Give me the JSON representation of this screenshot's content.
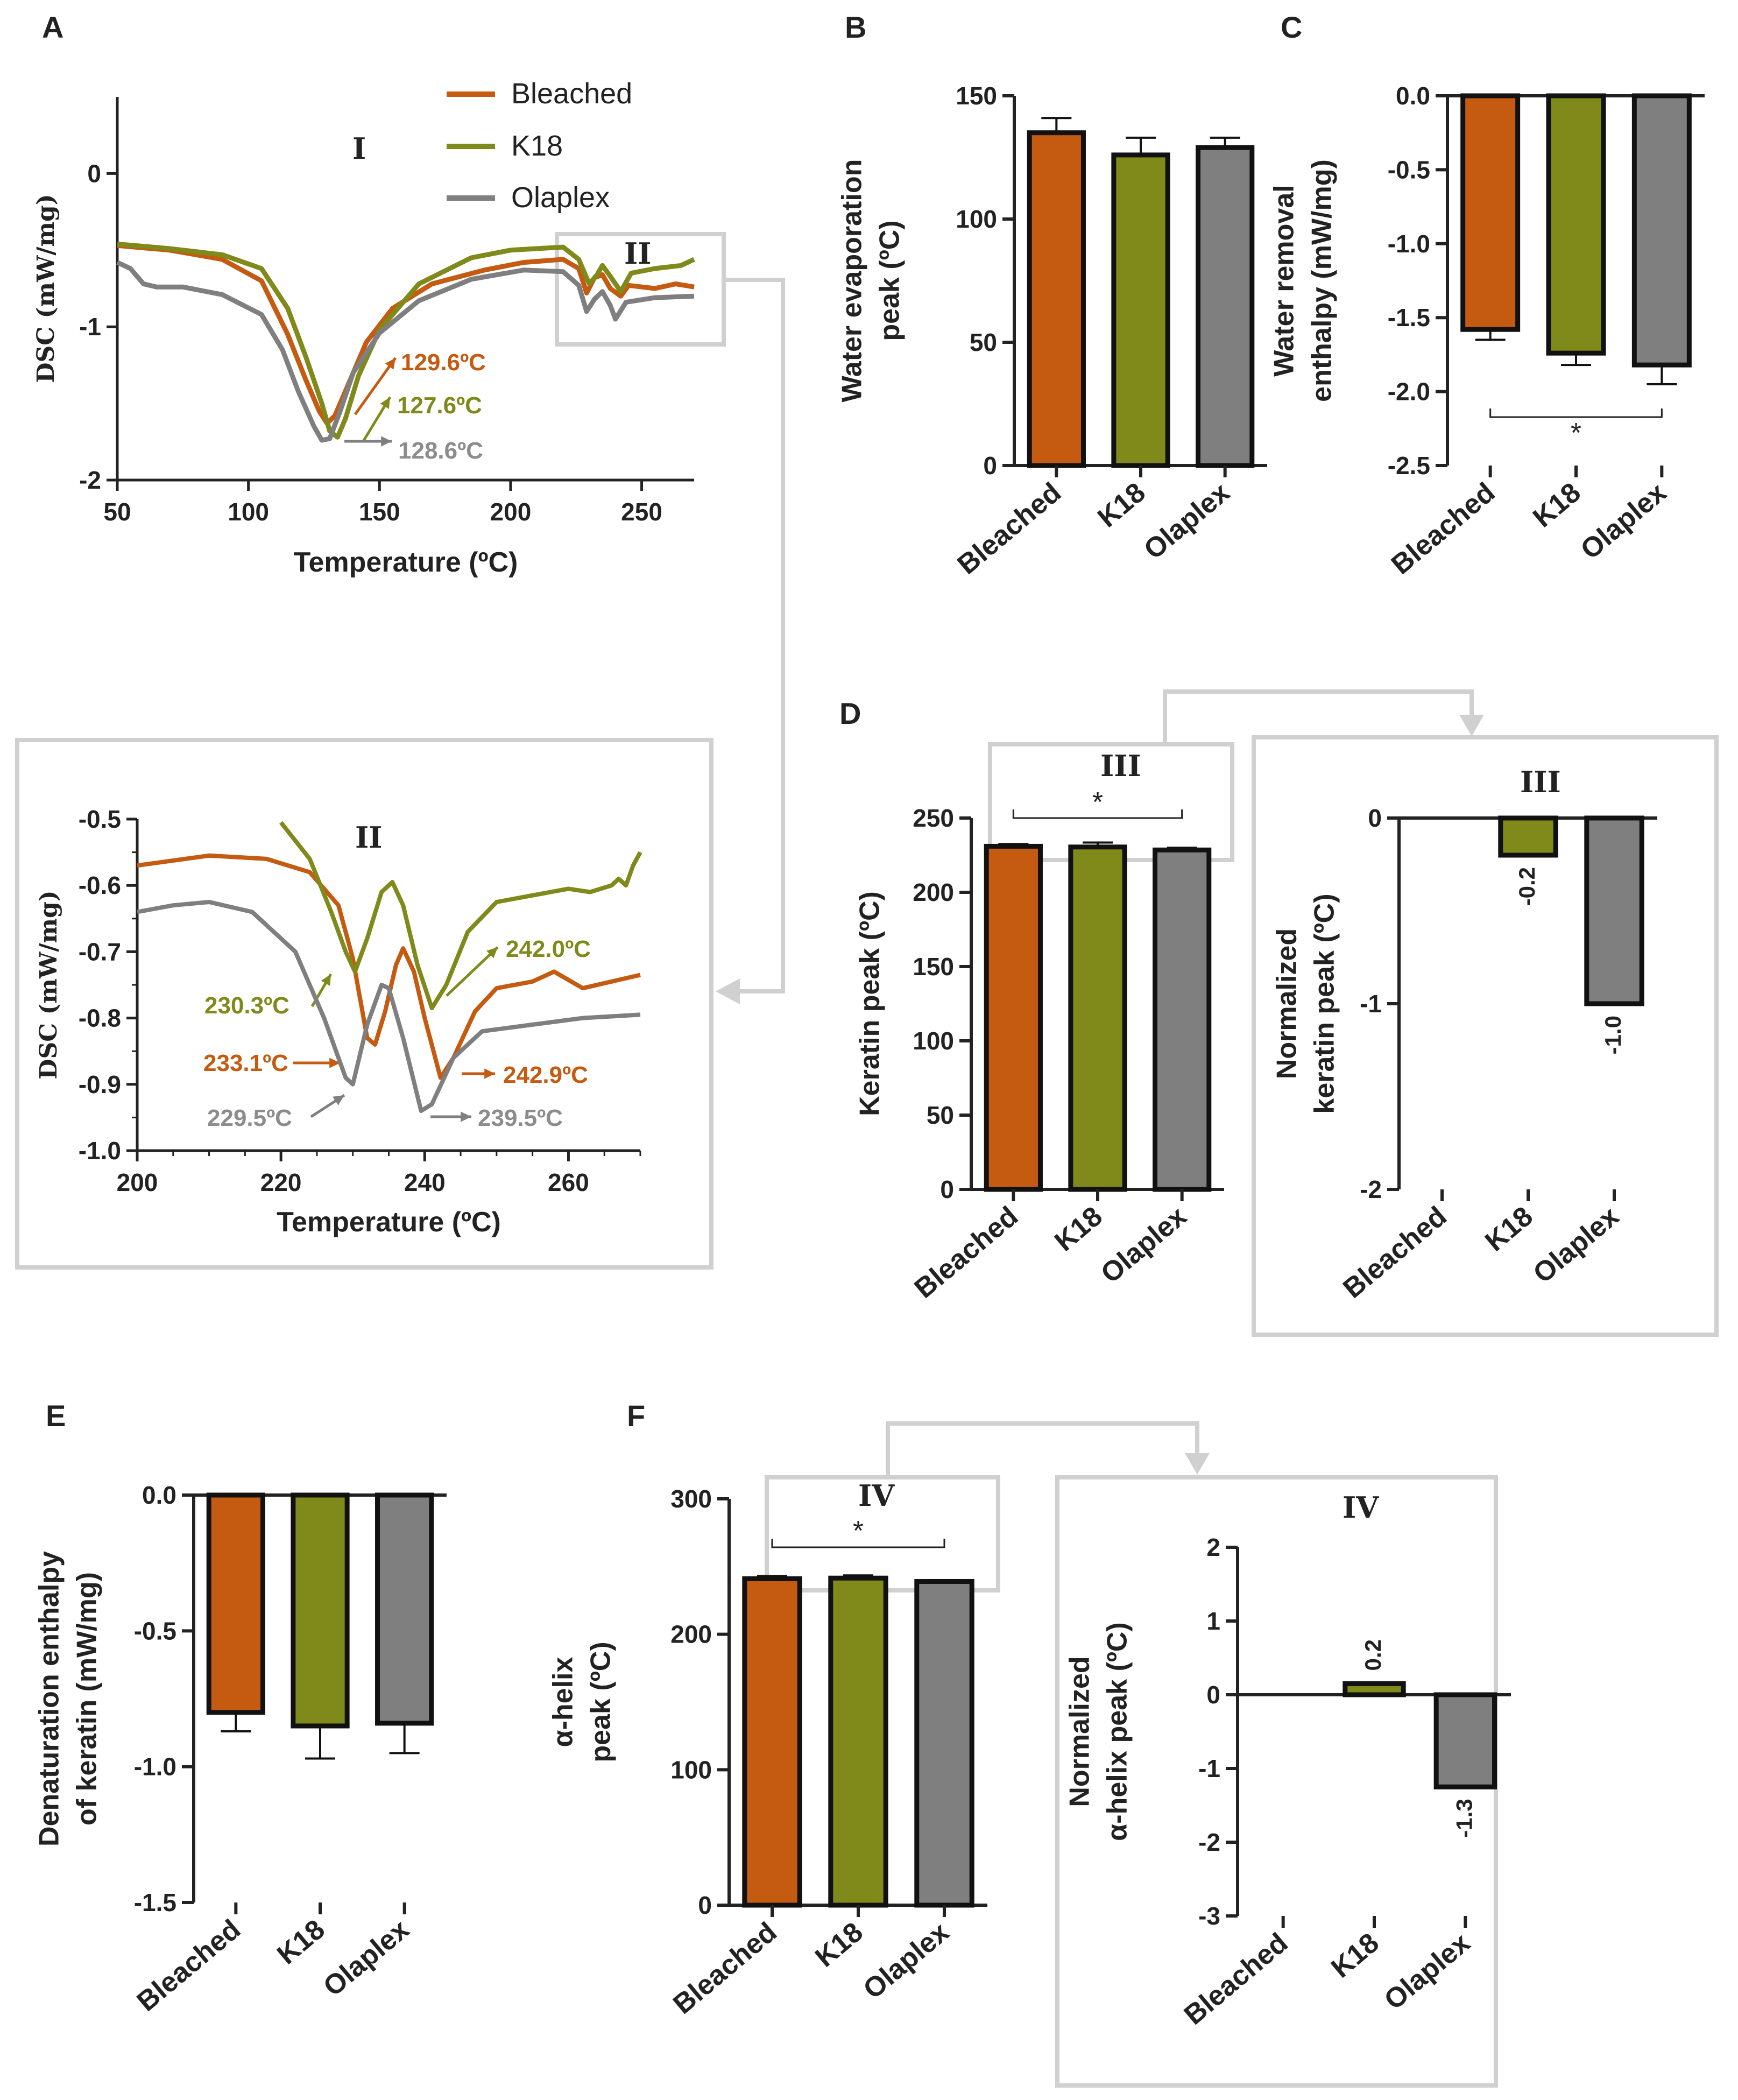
{
  "panels": {
    "A": "A",
    "B": "B",
    "C": "C",
    "D": "D",
    "E": "E",
    "F": "F"
  },
  "legend": [
    "Bleached",
    "K18",
    "Olaplex"
  ],
  "regions": {
    "I": "I",
    "II": "II",
    "III": "III",
    "IV": "IV"
  },
  "colors": {
    "bleached": "#c55a11",
    "k18": "#7f8a1b",
    "olaplex": "#7f7f7f",
    "frame": "#d0d0d0",
    "text": "#222222"
  },
  "annotations": {
    "main": [
      "129.6ºC",
      "127.6ºC",
      "128.6ºC"
    ],
    "zoom": [
      "230.3ºC",
      "242.0ºC",
      "233.1ºC",
      "242.9ºC",
      "229.5ºC",
      "239.5ºC"
    ]
  },
  "chart_data": [
    {
      "id": "dsc-main",
      "type": "line",
      "title": "",
      "xlabel": "Temperature (ºC)",
      "ylabel": "DSC (mW/mg)",
      "xlim": [
        50,
        270
      ],
      "ylim": [
        -2,
        0.5
      ],
      "xticks": [
        "50",
        "100",
        "150",
        "200",
        "250"
      ],
      "yticks": [
        "0",
        "-1",
        "-2"
      ],
      "series": [
        {
          "name": "Bleached",
          "points": [
            [
              50,
              -0.47
            ],
            [
              70,
              -0.5
            ],
            [
              90,
              -0.56
            ],
            [
              105,
              -0.7
            ],
            [
              115,
              -1.05
            ],
            [
              122,
              -1.35
            ],
            [
              127,
              -1.55
            ],
            [
              130,
              -1.63
            ],
            [
              133,
              -1.58
            ],
            [
              138,
              -1.38
            ],
            [
              145,
              -1.1
            ],
            [
              155,
              -0.88
            ],
            [
              170,
              -0.72
            ],
            [
              190,
              -0.63
            ],
            [
              205,
              -0.58
            ],
            [
              220,
              -0.56
            ],
            [
              226,
              -0.62
            ],
            [
              229,
              -0.78
            ],
            [
              232,
              -0.68
            ],
            [
              235,
              -0.66
            ],
            [
              238,
              -0.75
            ],
            [
              242,
              -0.8
            ],
            [
              245,
              -0.73
            ],
            [
              255,
              -0.75
            ],
            [
              263,
              -0.72
            ],
            [
              270,
              -0.74
            ]
          ]
        },
        {
          "name": "K18",
          "points": [
            [
              50,
              -0.46
            ],
            [
              70,
              -0.49
            ],
            [
              90,
              -0.53
            ],
            [
              105,
              -0.62
            ],
            [
              115,
              -0.88
            ],
            [
              122,
              -1.2
            ],
            [
              128,
              -1.5
            ],
            [
              131,
              -1.68
            ],
            [
              134,
              -1.72
            ],
            [
              137,
              -1.6
            ],
            [
              142,
              -1.32
            ],
            [
              150,
              -1.02
            ],
            [
              165,
              -0.72
            ],
            [
              185,
              -0.55
            ],
            [
              200,
              -0.5
            ],
            [
              220,
              -0.48
            ],
            [
              226,
              -0.56
            ],
            [
              230,
              -0.72
            ],
            [
              233,
              -0.66
            ],
            [
              235,
              -0.6
            ],
            [
              238,
              -0.67
            ],
            [
              242,
              -0.77
            ],
            [
              246,
              -0.65
            ],
            [
              255,
              -0.62
            ],
            [
              265,
              -0.6
            ],
            [
              270,
              -0.56
            ]
          ]
        },
        {
          "name": "Olaplex",
          "points": [
            [
              50,
              -0.58
            ],
            [
              55,
              -0.62
            ],
            [
              60,
              -0.72
            ],
            [
              65,
              -0.74
            ],
            [
              75,
              -0.74
            ],
            [
              90,
              -0.79
            ],
            [
              105,
              -0.92
            ],
            [
              113,
              -1.15
            ],
            [
              119,
              -1.42
            ],
            [
              125,
              -1.65
            ],
            [
              128,
              -1.74
            ],
            [
              131,
              -1.73
            ],
            [
              135,
              -1.55
            ],
            [
              140,
              -1.3
            ],
            [
              150,
              -1.04
            ],
            [
              165,
              -0.83
            ],
            [
              185,
              -0.69
            ],
            [
              205,
              -0.63
            ],
            [
              220,
              -0.64
            ],
            [
              226,
              -0.73
            ],
            [
              229,
              -0.9
            ],
            [
              232,
              -0.82
            ],
            [
              235,
              -0.77
            ],
            [
              238,
              -0.86
            ],
            [
              240,
              -0.95
            ],
            [
              244,
              -0.84
            ],
            [
              255,
              -0.81
            ],
            [
              270,
              -0.8
            ]
          ]
        }
      ]
    },
    {
      "id": "dsc-zoom",
      "type": "line",
      "title": "",
      "xlabel": "Temperature (ºC)",
      "ylabel": "DSC (mW/mg)",
      "xlim": [
        200,
        270
      ],
      "ylim": [
        -1.0,
        -0.5
      ],
      "xticks": [
        "200",
        "220",
        "240",
        "260"
      ],
      "yticks": [
        "-0.5",
        "-0.6",
        "-0.7",
        "-0.8",
        "-0.9",
        "-1.0"
      ],
      "series": [
        {
          "name": "Bleached",
          "points": [
            [
              200,
              -0.57
            ],
            [
              210,
              -0.555
            ],
            [
              218,
              -0.56
            ],
            [
              224,
              -0.58
            ],
            [
              228,
              -0.63
            ],
            [
              230,
              -0.71
            ],
            [
              232,
              -0.83
            ],
            [
              233.1,
              -0.84
            ],
            [
              234.5,
              -0.79
            ],
            [
              236,
              -0.72
            ],
            [
              237,
              -0.695
            ],
            [
              238.5,
              -0.73
            ],
            [
              240,
              -0.8
            ],
            [
              242.2,
              -0.89
            ],
            [
              244,
              -0.86
            ],
            [
              247,
              -0.79
            ],
            [
              250,
              -0.755
            ],
            [
              255,
              -0.745
            ],
            [
              258,
              -0.73
            ],
            [
              262,
              -0.755
            ],
            [
              266,
              -0.745
            ],
            [
              270,
              -0.735
            ]
          ]
        },
        {
          "name": "K18",
          "points": [
            [
              220,
              -0.505
            ],
            [
              224,
              -0.56
            ],
            [
              227,
              -0.64
            ],
            [
              229,
              -0.7
            ],
            [
              230.3,
              -0.73
            ],
            [
              232,
              -0.68
            ],
            [
              234,
              -0.61
            ],
            [
              235.5,
              -0.595
            ],
            [
              237,
              -0.63
            ],
            [
              239,
              -0.72
            ],
            [
              241,
              -0.785
            ],
            [
              243,
              -0.75
            ],
            [
              246,
              -0.67
            ],
            [
              250,
              -0.625
            ],
            [
              255,
              -0.615
            ],
            [
              260,
              -0.605
            ],
            [
              263,
              -0.61
            ],
            [
              266,
              -0.6
            ],
            [
              267,
              -0.59
            ],
            [
              268,
              -0.6
            ],
            [
              269,
              -0.57
            ],
            [
              270,
              -0.55
            ]
          ]
        },
        {
          "name": "Olaplex",
          "points": [
            [
              200,
              -0.64
            ],
            [
              205,
              -0.63
            ],
            [
              210,
              -0.625
            ],
            [
              216,
              -0.64
            ],
            [
              222,
              -0.7
            ],
            [
              226,
              -0.8
            ],
            [
              229,
              -0.89
            ],
            [
              230,
              -0.9
            ],
            [
              232,
              -0.81
            ],
            [
              234,
              -0.75
            ],
            [
              235,
              -0.755
            ],
            [
              237,
              -0.83
            ],
            [
              239.5,
              -0.94
            ],
            [
              241,
              -0.93
            ],
            [
              244,
              -0.86
            ],
            [
              248,
              -0.82
            ],
            [
              255,
              -0.81
            ],
            [
              262,
              -0.8
            ],
            [
              270,
              -0.795
            ]
          ]
        }
      ]
    },
    {
      "id": "B",
      "type": "bar",
      "title": "",
      "categories": [
        "Bleached",
        "K18",
        "Olaplex"
      ],
      "values": [
        135,
        126,
        129
      ],
      "errors": [
        6,
        7,
        4
      ],
      "ylabel": "Water evaporation peak (ºC)",
      "ylabel_lines": [
        "Water evaporation",
        "peak (ºC)"
      ],
      "ylim": [
        0,
        150
      ],
      "yticks": [
        "0",
        "50",
        "100",
        "150"
      ]
    },
    {
      "id": "C",
      "type": "bar",
      "title": "",
      "categories": [
        "Bleached",
        "K18",
        "Olaplex"
      ],
      "values": [
        -1.58,
        -1.74,
        -1.82
      ],
      "errors": [
        0.07,
        0.08,
        0.13
      ],
      "ylabel": "Water removal enthalpy (mW/mg)",
      "ylabel_lines": [
        "Water removal",
        "enthalpy (mW/mg)"
      ],
      "ylim": [
        -2.5,
        0
      ],
      "yticks": [
        "0.0",
        "-0.5",
        "-1.0",
        "-1.5",
        "-2.0",
        "-2.5"
      ],
      "significance": {
        "from": "Bleached",
        "to": "Olaplex",
        "label": "*"
      }
    },
    {
      "id": "D",
      "type": "bar",
      "title": "",
      "categories": [
        "Bleached",
        "K18",
        "Olaplex"
      ],
      "values": [
        231,
        230.5,
        228.5
      ],
      "errors": [
        1.5,
        3,
        1.5
      ],
      "ylabel": "Keratin peak (ºC)",
      "ylabel_lines": [
        "Keratin peak (ºC)"
      ],
      "ylim": [
        0,
        250
      ],
      "yticks": [
        "0",
        "50",
        "100",
        "150",
        "200",
        "250"
      ],
      "significance": {
        "from": "Bleached",
        "to": "Olaplex",
        "label": "*"
      }
    },
    {
      "id": "D-normalized",
      "type": "bar",
      "title": "III",
      "categories": [
        "Bleached",
        "K18",
        "Olaplex"
      ],
      "values": [
        0,
        -0.2,
        -1.0
      ],
      "value_labels": [
        "",
        "-0.2",
        "-1.0"
      ],
      "ylabel": "Normalized keratin peak (ºC)",
      "ylabel_lines": [
        "Normalized",
        "keratin peak (ºC)"
      ],
      "ylim": [
        -2,
        0
      ],
      "yticks": [
        "0",
        "-1",
        "-2"
      ]
    },
    {
      "id": "E",
      "type": "bar",
      "title": "",
      "categories": [
        "Bleached",
        "K18",
        "Olaplex"
      ],
      "values": [
        -0.8,
        -0.85,
        -0.84
      ],
      "errors": [
        0.07,
        0.12,
        0.11
      ],
      "ylabel": "Denaturation enthalpy of keratin (mW/mg)",
      "ylabel_lines": [
        "Denaturation enthalpy",
        "of keratin (mW/mg)"
      ],
      "ylim": [
        -1.5,
        0
      ],
      "yticks": [
        "0.0",
        "-0.5",
        "-1.0",
        "-1.5"
      ]
    },
    {
      "id": "F",
      "type": "bar",
      "title": "",
      "categories": [
        "Bleached",
        "K18",
        "Olaplex"
      ],
      "values": [
        241,
        241.5,
        239
      ],
      "errors": [
        2,
        2,
        1
      ],
      "ylabel": "α-helix peak (ºC)",
      "ylabel_lines": [
        "α-helix",
        "peak (ºC)"
      ],
      "ylim": [
        0,
        300
      ],
      "yticks": [
        "0",
        "100",
        "200",
        "300"
      ],
      "significance": {
        "from": "Bleached",
        "to": "Olaplex",
        "label": "*"
      }
    },
    {
      "id": "F-normalized",
      "type": "bar",
      "title": "IV",
      "categories": [
        "Bleached",
        "K18",
        "Olaplex"
      ],
      "values": [
        0,
        0.15,
        -1.25
      ],
      "value_labels": [
        "",
        "0.2",
        "-1.3"
      ],
      "ylabel": "Normalized α-helix peak (ºC)",
      "ylabel_lines": [
        "Normalized",
        "α-helix peak (ºC)"
      ],
      "ylim": [
        -3,
        2
      ],
      "yticks": [
        "2",
        "1",
        "0",
        "-1",
        "-2",
        "-3"
      ]
    }
  ]
}
